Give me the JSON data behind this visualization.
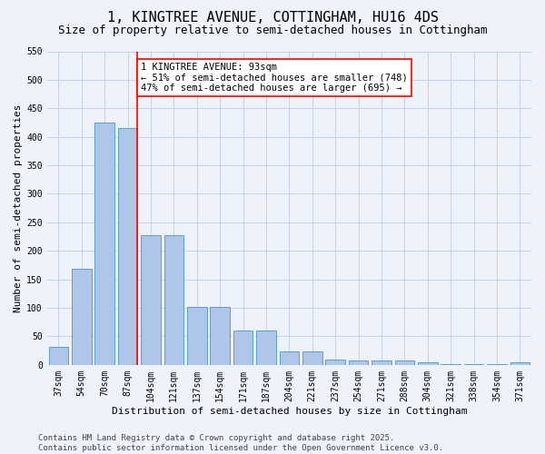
{
  "title": "1, KINGTREE AVENUE, COTTINGHAM, HU16 4DS",
  "subtitle": "Size of property relative to semi-detached houses in Cottingham",
  "xlabel": "Distribution of semi-detached houses by size in Cottingham",
  "ylabel": "Number of semi-detached properties",
  "categories": [
    "37sqm",
    "54sqm",
    "70sqm",
    "87sqm",
    "104sqm",
    "121sqm",
    "137sqm",
    "154sqm",
    "171sqm",
    "187sqm",
    "204sqm",
    "221sqm",
    "237sqm",
    "254sqm",
    "271sqm",
    "288sqm",
    "304sqm",
    "321sqm",
    "338sqm",
    "354sqm",
    "371sqm"
  ],
  "values": [
    32,
    168,
    425,
    415,
    228,
    228,
    102,
    102,
    60,
    60,
    23,
    23,
    10,
    8,
    8,
    7,
    4,
    2,
    2,
    1,
    4
  ],
  "bar_color": "#aec6e8",
  "bar_edge_color": "#5a9fd4",
  "red_line_index": 3,
  "ylim": [
    0,
    550
  ],
  "yticks": [
    0,
    50,
    100,
    150,
    200,
    250,
    300,
    350,
    400,
    450,
    500,
    550
  ],
  "annotation_title": "1 KINGTREE AVENUE: 93sqm",
  "annotation_line1": "← 51% of semi-detached houses are smaller (748)",
  "annotation_line2": "47% of semi-detached houses are larger (695) →",
  "footer_line1": "Contains HM Land Registry data © Crown copyright and database right 2025.",
  "footer_line2": "Contains public sector information licensed under the Open Government Licence v3.0.",
  "bg_color": "#eef2fb",
  "grid_color": "#c8d0e8",
  "title_fontsize": 11,
  "subtitle_fontsize": 9,
  "axis_label_fontsize": 8,
  "tick_fontsize": 7,
  "annotation_fontsize": 7.5,
  "footer_fontsize": 6.5
}
